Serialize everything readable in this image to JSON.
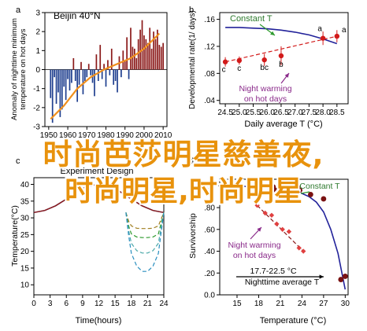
{
  "chart_data": [
    {
      "id": "A",
      "type": "bar",
      "panel_label": "a",
      "annotation": "Beijin 40°N",
      "ylabel": "Anomaly of nighttime minimum temperature on hot days",
      "xlabel": "",
      "xlim": [
        1948,
        2012
      ],
      "ylim": [
        -3,
        3
      ],
      "x_ticks": [
        1950,
        1960,
        1970,
        1980,
        1990,
        2000,
        2010
      ],
      "y_ticks": [
        -3,
        -2,
        -1,
        0,
        1,
        2,
        3
      ],
      "x_tick_labels": [
        "1950",
        "1960",
        "1970",
        "1980",
        "1990",
        "2000",
        "2010"
      ],
      "y_tick_labels": [
        "-3",
        "-2",
        "-1",
        "0",
        "1",
        "2",
        "3"
      ],
      "colors": {
        "positive": "#8b1a1a",
        "negative": "#1f3f8f",
        "trend": "#f0901e"
      },
      "years": [
        1951,
        1952,
        1953,
        1954,
        1955,
        1956,
        1957,
        1958,
        1959,
        1960,
        1961,
        1962,
        1963,
        1964,
        1965,
        1966,
        1967,
        1968,
        1969,
        1970,
        1971,
        1972,
        1973,
        1974,
        1975,
        1976,
        1977,
        1978,
        1979,
        1980,
        1981,
        1982,
        1983,
        1984,
        1985,
        1986,
        1987,
        1988,
        1989,
        1990,
        1991,
        1992,
        1993,
        1994,
        1995,
        1996,
        1997,
        1998,
        1999,
        2000,
        2001,
        2002,
        2003,
        2004,
        2005,
        2006,
        2007,
        2008,
        2009,
        2010
      ],
      "values": [
        -1.5,
        -2.8,
        -0.4,
        -1.8,
        -1.2,
        -2.5,
        -2.1,
        -0.9,
        -1.6,
        -0.5,
        -1.1,
        -0.7,
        0.6,
        -0.6,
        -1.7,
        -0.8,
        0.4,
        -1.3,
        -0.6,
        -0.4,
        0.3,
        -0.3,
        -0.7,
        -1.4,
        0.8,
        -0.6,
        1.3,
        -0.5,
        0.3,
        -0.9,
        0.5,
        -0.3,
        1.1,
        -0.8,
        -0.6,
        -1.2,
        0.7,
        -0.4,
        1.0,
        0.5,
        1.7,
        -0.5,
        2.2,
        1.2,
        1.1,
        0.6,
        1.6,
        2.1,
        2.6,
        1.8,
        1.6,
        1.4,
        2.2,
        1.1,
        2.0,
        1.6,
        2.1,
        1.3,
        1.2,
        1.4
      ],
      "trend": {
        "x": [
          1951,
          1958,
          1965,
          1972,
          1979,
          1986,
          1993,
          2000,
          2008
        ],
        "y": [
          -2.6,
          -1.9,
          -1.0,
          -0.4,
          0.0,
          0.3,
          0.6,
          1.1,
          1.9
        ]
      }
    },
    {
      "id": "B",
      "type": "scatter",
      "panel_label": "b",
      "ylabel": "Developmental rate(1/ days)",
      "xlabel": "Daily average T (°C)",
      "xlim": [
        24.3,
        28.9
      ],
      "ylim": [
        0.035,
        0.17
      ],
      "x_ticks": [
        24.5,
        25.0,
        25.5,
        26.0,
        26.5,
        27.0,
        27.5,
        28.0,
        28.5
      ],
      "y_ticks": [
        0.04,
        0.08,
        0.12,
        0.16
      ],
      "x_tick_labels": [
        "24.5",
        "25.0",
        "25.5",
        "26.0",
        "26.5",
        "27.0",
        "27.5",
        "28.0",
        "28.5"
      ],
      "y_tick_labels": [
        ".04",
        ".08",
        ".12",
        ".16"
      ],
      "colors": {
        "constant": "#22229a",
        "warming": "#d21a1a",
        "arrow_constant": "#2e9a2e",
        "arrow_warming": "#8a2a8a"
      },
      "constant_curve": {
        "x": [
          24.5,
          25.0,
          25.5,
          26.0,
          26.5,
          27.0,
          27.5,
          28.0,
          28.5
        ],
        "y": [
          0.148,
          0.148,
          0.147,
          0.146,
          0.144,
          0.141,
          0.137,
          0.131,
          0.124
        ]
      },
      "warming_points": {
        "x": [
          24.5,
          25.0,
          25.9,
          26.5,
          28.0,
          28.5
        ],
        "y": [
          0.097,
          0.099,
          0.1,
          0.106,
          0.132,
          0.135
        ],
        "err": [
          0.007,
          0.006,
          0.009,
          0.014,
          0.01,
          0.009
        ],
        "letters": [
          "c",
          "c",
          "bc",
          "b",
          "a",
          "a"
        ]
      },
      "warming_trend": {
        "x": [
          24.5,
          28.5
        ],
        "y": [
          0.097,
          0.135
        ]
      },
      "annotations": {
        "constant": "Constant T",
        "warming": "Night warming on hot days"
      }
    },
    {
      "id": "C",
      "type": "line",
      "panel_label": "c",
      "ylabel": "Temperature(°C)",
      "xlabel": "Time(hours)",
      "annotation": "Experiment Design",
      "xlim": [
        0,
        24
      ],
      "ylim": [
        7,
        42
      ],
      "x_ticks": [
        0,
        3,
        6,
        9,
        12,
        15,
        18,
        21,
        24
      ],
      "y_ticks": [
        10,
        15,
        20,
        25,
        30,
        35,
        40
      ],
      "x_tick_labels": [
        "0",
        "3",
        "6",
        "9",
        "12",
        "15",
        "18",
        "21",
        "24"
      ],
      "y_tick_labels": [
        "10",
        "15",
        "20",
        "25",
        "30",
        "35",
        "40"
      ],
      "series": [
        {
          "color": "#3b5fc4",
          "dash": false,
          "x": [
            0,
            2,
            4,
            6,
            9,
            12,
            15,
            18,
            20,
            22,
            24
          ],
          "y": [
            31.6,
            32.2,
            33.6,
            35.6,
            38.8,
            40.2,
            38.8,
            35.6,
            33.6,
            32.2,
            31.6
          ]
        },
        {
          "color": "#8b1a1a",
          "dash": false,
          "x": [
            0,
            2,
            4,
            6,
            9,
            12,
            15,
            18,
            20,
            22,
            24
          ],
          "y": [
            31.6,
            32.2,
            33.6,
            35.6,
            38.8,
            40.2,
            38.8,
            35.6,
            33.6,
            32.2,
            31.6
          ]
        },
        {
          "color": "#a07e1f",
          "dash": true,
          "x": [
            17,
            17.5,
            18,
            19,
            20,
            21,
            22,
            23,
            24
          ],
          "y": [
            31.6,
            29.0,
            27.6,
            26.9,
            26.8,
            26.8,
            26.9,
            27.6,
            31.6
          ]
        },
        {
          "color": "#2e9a2e",
          "dash": true,
          "x": [
            17,
            17.5,
            18,
            19,
            20,
            21,
            22,
            23,
            24
          ],
          "y": [
            31.6,
            27.6,
            25.2,
            24.3,
            24.1,
            24.1,
            24.3,
            25.2,
            31.6
          ]
        },
        {
          "color": "#4aa8a8",
          "dash": true,
          "x": [
            17,
            17.5,
            18,
            19,
            20,
            21,
            22,
            23,
            24
          ],
          "y": [
            31.6,
            26.2,
            22.4,
            20.2,
            19.5,
            19.5,
            20.2,
            22.4,
            31.6
          ]
        },
        {
          "color": "#2a8fbf",
          "dash": true,
          "x": [
            17,
            17.5,
            18,
            19,
            20,
            21,
            22,
            23,
            24
          ],
          "y": [
            31.6,
            24.8,
            19.4,
            15.6,
            14.0,
            14.0,
            15.6,
            19.4,
            31.6
          ]
        }
      ]
    },
    {
      "id": "D",
      "type": "scatter",
      "panel_label": "d",
      "ylabel": "Survivorship",
      "xlabel": "Temperature (°C)",
      "xlim": [
        12.6,
        30.4
      ],
      "ylim": [
        0,
        1.06
      ],
      "x_ticks": [
        15,
        18,
        21,
        24,
        27,
        30
      ],
      "y_ticks": [
        0,
        0.2,
        0.4,
        0.6,
        0.8,
        1.0
      ],
      "x_tick_labels": [
        "15",
        "18",
        "21",
        "24",
        "27",
        "30"
      ],
      "y_tick_labels": [
        "0.0",
        ".20",
        ".40",
        ".60",
        ".80",
        "1.00"
      ],
      "colors": {
        "constant_curve": "#22229a",
        "constant_points": "#7a1212",
        "warming_points": "#e04040",
        "warming_line": "#8b1a1a",
        "arrow_constant": "#2e9a2e",
        "arrow_warming": "#8a2a8a"
      },
      "constant_curve": {
        "x": [
          14,
          16,
          18,
          20,
          22,
          24,
          25,
          26,
          27,
          28,
          29,
          30
        ],
        "y": [
          1.0,
          0.995,
          0.985,
          0.975,
          0.96,
          0.93,
          0.9,
          0.85,
          0.76,
          0.6,
          0.38,
          0.05
        ]
      },
      "constant_points": {
        "x": [
          17.8,
          20.0,
          20.3,
          21.1,
          21.5,
          23.4,
          23.7,
          25.2,
          27.0,
          29.4,
          30.0
        ],
        "y": [
          0.98,
          0.99,
          0.96,
          0.96,
          0.99,
          0.99,
          0.96,
          0.92,
          0.88,
          0.14,
          0.17
        ]
      },
      "warming_points": {
        "x": [
          17.8,
          18.9,
          19.8,
          20.5,
          21.3,
          22.2,
          23.6,
          24.2
        ],
        "y": [
          0.82,
          0.75,
          0.73,
          0.65,
          0.6,
          0.58,
          0.43,
          0.4
        ]
      },
      "warming_trend": {
        "x": [
          17.8,
          24.2
        ],
        "y": [
          0.82,
          0.4
        ]
      },
      "annotations": {
        "constant": "Constant T",
        "warming": "Night warming on hot days",
        "average": "17.7-22.5 °C",
        "average_label": "Nighttime average T"
      }
    }
  ],
  "overlay": {
    "line1": "时尚芭莎明星慈善夜,",
    "line2": "时尚明星,时尚明星"
  }
}
